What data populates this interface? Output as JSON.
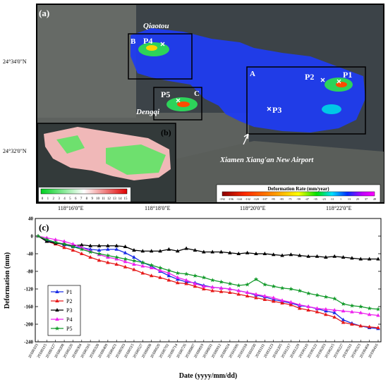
{
  "map": {
    "panel_label": "(a)",
    "inset_label": "(b)",
    "lat_labels": [
      "24°34'0\"N",
      "24°32'0\"N"
    ],
    "lon_labels": [
      "118°16'0\"E",
      "118°18'0\"E",
      "118°20'0\"E",
      "118°22'0\"E"
    ],
    "place_labels": [
      "Qiaotou",
      "Dengqi",
      "Xiamen Xiang'an New Airport"
    ],
    "box_labels": [
      "A",
      "B",
      "C"
    ],
    "point_labels": [
      "P1",
      "P2",
      "P3",
      "P4",
      "P5"
    ],
    "colorbar_title": "Deformation Rate (mm/year)",
    "colorbar_ticks": [
      "-192",
      "-156",
      "-144",
      "-132",
      "-120",
      "-107",
      "-95",
      "-83",
      "-71",
      "-59",
      "-47",
      "-35",
      "-23",
      "-11",
      "1",
      "13",
      "25",
      "37",
      "49"
    ],
    "inset_ticks": [
      "0",
      "1",
      "2",
      "3",
      "4",
      "5",
      "6",
      "7",
      "8",
      "9",
      "10",
      "11",
      "12",
      "13",
      "14",
      "15"
    ],
    "colors": {
      "water": "#3c4348",
      "land": "#5b5f5b",
      "deform_blue": "#1f3cf0",
      "box": "#000000",
      "marker": "#ffffff"
    }
  },
  "chart_data": {
    "type": "line",
    "panel_label": "(c)",
    "xlabel": "Date (yyyy/mm/dd)",
    "ylabel": "Deformation (mm)",
    "ylim": [
      -240,
      40
    ],
    "yticks": [
      40,
      0,
      -40,
      -80,
      -120,
      -160,
      -200,
      -240
    ],
    "x": [
      "20180103",
      "20180115",
      "20180127",
      "20180208",
      "20180220",
      "20180304",
      "20180316",
      "20180328",
      "20180409",
      "20180421",
      "20180503",
      "20180515",
      "20180527",
      "20180608",
      "20180620",
      "20180702",
      "20180714",
      "20180726",
      "20180807",
      "20180819",
      "20180831",
      "20180912",
      "20180924",
      "20181006",
      "20181018",
      "20181030",
      "20181111",
      "20181123",
      "20181205",
      "20181217",
      "20181229",
      "20190110",
      "20190122",
      "20190203",
      "20190215",
      "20190227",
      "20190311",
      "20190323",
      "20190404",
      "20190416"
    ],
    "legend_position": "bottom-left",
    "series": [
      {
        "name": "P1",
        "color": "#1a2ee6",
        "marker": "triangle",
        "values": [
          0,
          -10,
          -14,
          -20,
          -24,
          -26,
          -30,
          -32,
          -30,
          -30,
          -38,
          -48,
          -60,
          -68,
          -80,
          -90,
          -98,
          -104,
          -106,
          -112,
          -116,
          -118,
          -120,
          -124,
          -128,
          -134,
          -138,
          -144,
          -148,
          -152,
          -158,
          -160,
          -165,
          -170,
          -174,
          -190,
          -198,
          -204,
          -208,
          -210
        ]
      },
      {
        "name": "P2",
        "color": "#e61a1a",
        "marker": "triangle",
        "values": [
          0,
          -12,
          -18,
          -26,
          -32,
          -40,
          -48,
          -55,
          -60,
          -64,
          -70,
          -76,
          -84,
          -90,
          -94,
          -100,
          -106,
          -108,
          -114,
          -120,
          -124,
          -126,
          -128,
          -132,
          -136,
          -140,
          -144,
          -148,
          -152,
          -156,
          -164,
          -168,
          -172,
          -178,
          -184,
          -196,
          -200,
          -204,
          -206,
          -208
        ]
      },
      {
        "name": "P3",
        "color": "#000000",
        "marker": "triangle",
        "values": [
          0,
          -12,
          -16,
          -18,
          -22,
          -20,
          -22,
          -22,
          -22,
          -22,
          -24,
          -32,
          -34,
          -34,
          -34,
          -30,
          -34,
          -28,
          -32,
          -36,
          -36,
          -36,
          -38,
          -40,
          -38,
          -40,
          -40,
          -42,
          -44,
          -42,
          -44,
          -46,
          -46,
          -48,
          -46,
          -48,
          -50,
          -52,
          -52,
          -52
        ]
      },
      {
        "name": "P4",
        "color": "#ee22ee",
        "marker": "triangle",
        "values": [
          0,
          -4,
          -8,
          -12,
          -18,
          -26,
          -34,
          -42,
          -48,
          -52,
          -58,
          -64,
          -68,
          -72,
          -78,
          -84,
          -94,
          -100,
          -108,
          -114,
          -116,
          -118,
          -120,
          -124,
          -128,
          -132,
          -136,
          -140,
          -146,
          -150,
          -156,
          -160,
          -164,
          -166,
          -168,
          -170,
          -172,
          -174,
          -178,
          -180
        ]
      },
      {
        "name": "P5",
        "color": "#129a2a",
        "marker": "star",
        "values": [
          0,
          -8,
          -14,
          -18,
          -24,
          -30,
          -36,
          -40,
          -44,
          -48,
          -52,
          -56,
          -60,
          -66,
          -72,
          -78,
          -84,
          -86,
          -90,
          -94,
          -100,
          -104,
          -108,
          -112,
          -110,
          -98,
          -110,
          -114,
          -118,
          -120,
          -124,
          -130,
          -134,
          -138,
          -142,
          -154,
          -158,
          -160,
          -164,
          -166
        ]
      }
    ]
  }
}
